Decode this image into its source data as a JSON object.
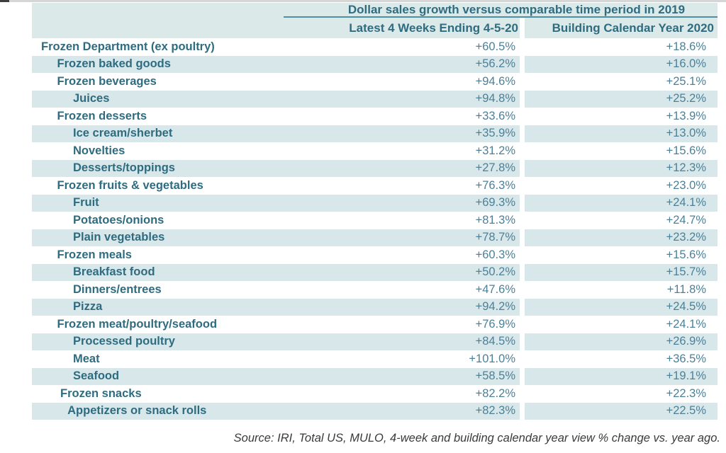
{
  "chart_data": {
    "type": "table",
    "title": "Dollar sales growth versus comparable time period in 2019",
    "columns": [
      "Latest 4 Weeks Ending 4-5-20",
      "Building Calendar Year 2020"
    ],
    "rows": [
      {
        "label": "Frozen Department (ex poultry)",
        "indent": 0,
        "values": [
          "+60.5%",
          "+18.6%"
        ]
      },
      {
        "label": "Frozen baked goods",
        "indent": 1,
        "values": [
          "+56.2%",
          "+16.0%"
        ]
      },
      {
        "label": "Frozen beverages",
        "indent": 1,
        "values": [
          "+94.6%",
          "+25.1%"
        ]
      },
      {
        "label": "Juices",
        "indent": 2,
        "values": [
          "+94.8%",
          "+25.2%"
        ]
      },
      {
        "label": "Frozen desserts",
        "indent": 1,
        "values": [
          "+33.6%",
          "+13.9%"
        ]
      },
      {
        "label": "Ice cream/sherbet",
        "indent": 2,
        "values": [
          "+35.9%",
          "+13.0%"
        ]
      },
      {
        "label": "Novelties",
        "indent": 2,
        "values": [
          "+31.2%",
          "+15.6%"
        ]
      },
      {
        "label": "Desserts/toppings",
        "indent": 2,
        "values": [
          "+27.8%",
          "+12.3%"
        ]
      },
      {
        "label": "Frozen fruits & vegetables",
        "indent": 1,
        "values": [
          "+76.3%",
          "+23.0%"
        ]
      },
      {
        "label": "Fruit",
        "indent": 2,
        "values": [
          "+69.3%",
          "+24.1%"
        ]
      },
      {
        "label": "Potatoes/onions",
        "indent": 2,
        "values": [
          "+81.3%",
          "+24.7%"
        ]
      },
      {
        "label": "Plain vegetables",
        "indent": 2,
        "values": [
          "+78.7%",
          "+23.2%"
        ]
      },
      {
        "label": "Frozen meals",
        "indent": 1,
        "values": [
          "+60.3%",
          "+15.6%"
        ]
      },
      {
        "label": "Breakfast food",
        "indent": 2,
        "values": [
          "+50.2%",
          "+15.7%"
        ]
      },
      {
        "label": "Dinners/entrees",
        "indent": 2,
        "values": [
          "+47.6%",
          "+11.8%"
        ]
      },
      {
        "label": "Pizza",
        "indent": 2,
        "values": [
          "+94.2%",
          "+24.5%"
        ]
      },
      {
        "label": "Frozen meat/poultry/seafood",
        "indent": 1,
        "values": [
          "+76.9%",
          "+24.1%"
        ]
      },
      {
        "label": "Processed poultry",
        "indent": 2,
        "values": [
          "+84.5%",
          "+26.9%"
        ]
      },
      {
        "label": "Meat",
        "indent": 2,
        "values": [
          "+101.0%",
          "+36.5%"
        ]
      },
      {
        "label": "Seafood",
        "indent": 2,
        "values": [
          "+58.5%",
          "+19.1%"
        ]
      },
      {
        "label": "Frozen snacks",
        "indent": 1.2,
        "values": [
          "+82.2%",
          "+22.3%"
        ]
      },
      {
        "label": "Appetizers or snack rolls",
        "indent": 1.65,
        "values": [
          "+82.3%",
          "+22.5%"
        ]
      }
    ],
    "source": "Source: IRI, Total US, MULO, 4-week and building calendar year view % change vs. year ago."
  },
  "colors": {
    "stripe": "#D7E7EA",
    "header_bg": "#DBE9E8",
    "text_dark": "#2F6C80",
    "value_text": "#4C8198",
    "divider_line": "#4E8EA2",
    "source_text": "#3A3A3A",
    "top_strip": "#D6D6D6",
    "top_strip_dark": "#3E3E3E"
  }
}
